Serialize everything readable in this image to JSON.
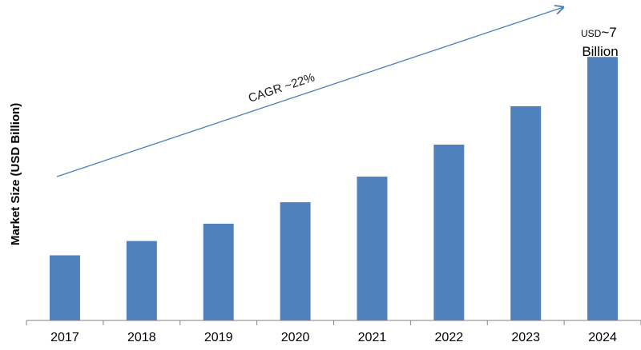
{
  "chart_data": {
    "type": "bar",
    "title": "",
    "xlabel": "",
    "ylabel": "Market Size (USD Billion)",
    "categories": [
      "2017",
      "2018",
      "2019",
      "2020",
      "2021",
      "2022",
      "2023",
      "2024"
    ],
    "values": [
      1.73,
      2.11,
      2.57,
      3.14,
      3.82,
      4.67,
      5.69,
      7.0
    ],
    "ylim": [
      0,
      7.6
    ],
    "grid": false,
    "legend": "none",
    "bar_color": "#4F81BD",
    "arrow_color": "#4A7EBB",
    "annotations": {
      "cagr": "CAGR ~22%",
      "last_bar_prefix": "USD",
      "last_bar_value": "~7",
      "last_bar_unit": "Billion"
    }
  }
}
